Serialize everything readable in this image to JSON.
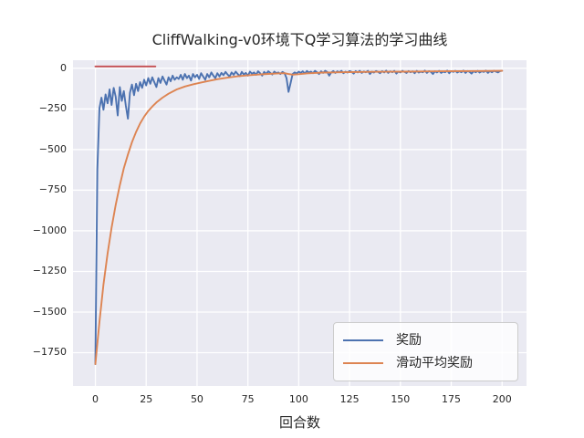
{
  "figure": {
    "background": "#ffffff",
    "axes_background": "#eaeaf2",
    "grid_color": "#ffffff",
    "text_color": "#262626"
  },
  "chart_data": {
    "type": "line",
    "title": "CliffWalking-v0环境下Q学习算法的学习曲线",
    "xlabel": "回合数",
    "ylabel": "",
    "grid": true,
    "legend_position": "lower right",
    "xlim": [
      -11,
      212
    ],
    "ylim": [
      -1955,
      50
    ],
    "x_ticks": [
      0,
      25,
      50,
      75,
      100,
      125,
      150,
      175,
      200
    ],
    "x_tick_labels": [
      "0",
      "25",
      "50",
      "75",
      "100",
      "125",
      "150",
      "175",
      "200"
    ],
    "y_ticks": [
      0,
      -250,
      -500,
      -750,
      -1000,
      -1250,
      -1500,
      -1750
    ],
    "y_tick_labels": [
      "0",
      "−250",
      "−500",
      "−750",
      "−1000",
      "−1250",
      "−1500",
      "−1750"
    ],
    "series": [
      {
        "name": "奖励",
        "color": "#4C72B0",
        "in_legend": true,
        "x_is_index": true,
        "values": [
          -1820,
          -620,
          -245,
          -180,
          -255,
          -160,
          -215,
          -130,
          -225,
          -120,
          -175,
          -290,
          -115,
          -200,
          -140,
          -230,
          -310,
          -150,
          -100,
          -165,
          -95,
          -140,
          -85,
          -120,
          -70,
          -105,
          -60,
          -95,
          -55,
          -85,
          -115,
          -60,
          -90,
          -50,
          -75,
          -100,
          -55,
          -80,
          -45,
          -70,
          -55,
          -65,
          -40,
          -70,
          -35,
          -60,
          -45,
          -75,
          -35,
          -55,
          -40,
          -65,
          -30,
          -50,
          -70,
          -35,
          -55,
          -25,
          -45,
          -60,
          -30,
          -50,
          -28,
          -42,
          -22,
          -38,
          -50,
          -25,
          -40,
          -20,
          -35,
          -48,
          -22,
          -38,
          -28,
          -45,
          -20,
          -33,
          -25,
          -40,
          -18,
          -30,
          -45,
          -22,
          -35,
          -18,
          -28,
          -38,
          -20,
          -30,
          -25,
          -35,
          -22,
          -30,
          -60,
          -145,
          -90,
          -35,
          -25,
          -32,
          -20,
          -28,
          -18,
          -32,
          -16,
          -26,
          -20,
          -30,
          -15,
          -24,
          -35,
          -18,
          -28,
          -15,
          -22,
          -45,
          -25,
          -16,
          -28,
          -18,
          -24,
          -15,
          -30,
          -20,
          -26,
          -16,
          -22,
          -32,
          -17,
          -25,
          -15,
          -28,
          -19,
          -24,
          -15,
          -35,
          -20,
          -26,
          -16,
          -22,
          -30,
          -17,
          -25,
          -14,
          -28,
          -18,
          -24,
          -15,
          -32,
          -20,
          -25,
          -15,
          -22,
          -28,
          -16,
          -24,
          -18,
          -30,
          -15,
          -26,
          -20,
          -24,
          -14,
          -28,
          -17,
          -22,
          -35,
          -18,
          -25,
          -15,
          -28,
          -20,
          -24,
          -14,
          -30,
          -17,
          -22,
          -15,
          -26,
          -18,
          -24,
          -14,
          -28,
          -16,
          -22,
          -32,
          -17,
          -24,
          -15,
          -26,
          -18,
          -22,
          -14,
          -28,
          -16,
          -24,
          -15,
          -20,
          -25,
          -17,
          -15
        ]
      },
      {
        "name": "滑动平均奖励",
        "color": "#DD8452",
        "in_legend": true,
        "points": [
          [
            0,
            -1820
          ],
          [
            2,
            -1560
          ],
          [
            4,
            -1330
          ],
          [
            6,
            -1140
          ],
          [
            8,
            -980
          ],
          [
            10,
            -840
          ],
          [
            12,
            -720
          ],
          [
            14,
            -615
          ],
          [
            16,
            -530
          ],
          [
            18,
            -455
          ],
          [
            20,
            -392
          ],
          [
            22,
            -340
          ],
          [
            24,
            -297
          ],
          [
            26,
            -262
          ],
          [
            28,
            -235
          ],
          [
            30,
            -210
          ],
          [
            33,
            -180
          ],
          [
            36,
            -156
          ],
          [
            40,
            -130
          ],
          [
            44,
            -112
          ],
          [
            48,
            -98
          ],
          [
            52,
            -87
          ],
          [
            56,
            -77
          ],
          [
            60,
            -67
          ],
          [
            65,
            -57
          ],
          [
            70,
            -49
          ],
          [
            75,
            -43
          ],
          [
            80,
            -38
          ],
          [
            85,
            -34
          ],
          [
            90,
            -31
          ],
          [
            93,
            -30
          ],
          [
            95,
            -35
          ],
          [
            97,
            -39
          ],
          [
            100,
            -36
          ],
          [
            104,
            -31
          ],
          [
            108,
            -28
          ],
          [
            112,
            -26
          ],
          [
            116,
            -25
          ],
          [
            120,
            -24
          ],
          [
            128,
            -22.5
          ],
          [
            136,
            -21.5
          ],
          [
            144,
            -21
          ],
          [
            152,
            -20
          ],
          [
            160,
            -19
          ],
          [
            170,
            -18
          ],
          [
            180,
            -17
          ],
          [
            190,
            -16
          ],
          [
            200,
            -15
          ]
        ]
      },
      {
        "name": "参考线",
        "color": "#C44E52",
        "in_legend": false,
        "points": [
          [
            0,
            12
          ],
          [
            29.5,
            12
          ]
        ]
      }
    ]
  }
}
